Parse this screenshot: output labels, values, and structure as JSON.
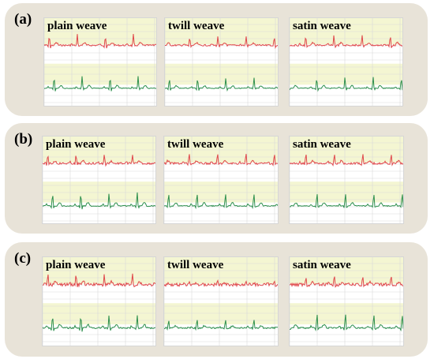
{
  "panels": [
    {
      "label": "(a)",
      "titles": [
        "plain weave",
        "twill weave",
        "satin weave"
      ]
    },
    {
      "label": "(b)",
      "titles": [
        "plain weave",
        "twill weave",
        "satin weave"
      ]
    },
    {
      "label": "(c)",
      "titles": [
        "plain weave",
        "twill weave",
        "satin weave"
      ]
    }
  ],
  "colors": {
    "red_trace": "#e0474a",
    "green_trace": "#2c8f4c",
    "highlight_band": "#f4f6d2",
    "grid_line": "#d9d9d9",
    "panel_bg": "#e8e3d8"
  }
}
